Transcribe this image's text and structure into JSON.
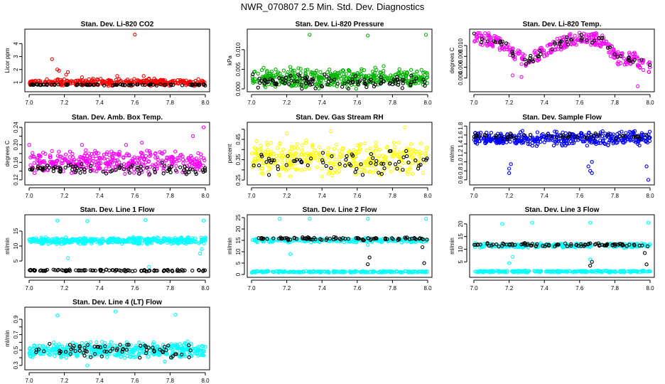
{
  "title": "NWR_070807  2.5 Min. Std. Dev. Diagnostics",
  "chart_data": [
    {
      "type": "scatter",
      "title": "Stan. Dev. Li-820 CO2",
      "ylabel": "Licor ppm",
      "xlim": [
        7.0,
        8.0
      ],
      "ylim": [
        0.5,
        4.9
      ],
      "xticks": [
        7.0,
        7.2,
        7.4,
        7.6,
        7.8,
        8.0
      ],
      "xticklabels": [
        "7.0",
        "7.2",
        "7.4",
        "7.6",
        "7.8",
        "8.0"
      ],
      "yticks": [
        1,
        2,
        3,
        4
      ],
      "yticklabels": [
        "1",
        "2",
        "3",
        "4"
      ],
      "series": [
        {
          "color": "#ff0000",
          "band": {
            "min": 0.7,
            "max": 1.3,
            "n": 320
          },
          "points": [
            [
              7.13,
              2.8
            ],
            [
              7.16,
              2.0
            ],
            [
              7.17,
              1.9
            ],
            [
              7.21,
              1.6
            ],
            [
              7.22,
              1.8
            ],
            [
              7.3,
              1.4
            ],
            [
              7.5,
              1.5
            ],
            [
              7.6,
              4.7
            ],
            [
              7.65,
              1.5
            ],
            [
              7.68,
              1.3
            ],
            [
              7.71,
              1.3
            ],
            [
              7.75,
              1.2
            ]
          ]
        },
        {
          "color": "#000000",
          "band": {
            "min": 0.75,
            "max": 0.9,
            "n": 90
          },
          "points": []
        }
      ]
    },
    {
      "type": "scatter",
      "title": "Stan. Dev. Li-820 Pressure",
      "ylabel": "kPa",
      "xlim": [
        7.0,
        8.0
      ],
      "ylim": [
        0.0,
        0.0145
      ],
      "xticks": [
        7.0,
        7.2,
        7.4,
        7.6,
        7.8,
        8.0
      ],
      "xticklabels": [
        "7.0",
        "7.2",
        "7.4",
        "7.6",
        "7.8",
        "8.0"
      ],
      "yticks": [
        0.0,
        0.005,
        0.01
      ],
      "yticklabels": [
        "0.000",
        "0.005",
        "0.010"
      ],
      "series": [
        {
          "color": "#00b400",
          "band": {
            "min": 0.0,
            "max": 0.0055,
            "n": 420
          },
          "points": [
            [
              7.33,
              0.0138
            ],
            [
              7.66,
              0.0136
            ],
            [
              7.99,
              0.0138
            ],
            [
              7.75,
              0.0058
            ],
            [
              7.22,
              0.0056
            ]
          ]
        },
        {
          "color": "#000000",
          "band": {
            "min": 0.0,
            "max": 0.004,
            "n": 110
          },
          "points": []
        }
      ]
    },
    {
      "type": "scatter",
      "title": "Stan. Dev. Li-820 Temp.",
      "ylabel": "degrees C",
      "xlim": [
        7.0,
        8.0
      ],
      "ylim": [
        0.002,
        0.0125
      ],
      "xticks": [
        7.0,
        7.2,
        7.4,
        7.6,
        7.8,
        8.0
      ],
      "xticklabels": [
        "7.0",
        "7.2",
        "7.4",
        "7.6",
        "7.8",
        "8.0"
      ],
      "yticks": [
        0.004,
        0.006,
        0.008,
        0.01
      ],
      "yticklabels": [
        "0.004",
        "0.006",
        "0.008",
        "0.010"
      ],
      "series": [
        {
          "color": "#ff00ff",
          "curve": {
            "x": [
              7.0,
              7.1,
              7.2,
              7.25,
              7.3,
              7.4,
              7.5,
              7.6,
              7.7,
              7.75,
              7.8,
              7.85,
              7.9,
              8.0
            ],
            "y": [
              0.0115,
              0.011,
              0.0095,
              0.008,
              0.007,
              0.009,
              0.0105,
              0.0115,
              0.0112,
              0.0105,
              0.008,
              0.0075,
              0.0078,
              0.006
            ]
          },
          "spread": 0.0012,
          "n": 320,
          "points": [
            [
              7.22,
              0.0045
            ],
            [
              7.27,
              0.0042
            ],
            [
              7.93,
              0.0025
            ],
            [
              7.82,
              0.0065
            ]
          ]
        },
        {
          "color": "#000000",
          "curve": {
            "x": [
              7.0,
              7.1,
              7.2,
              7.25,
              7.3,
              7.4,
              7.5,
              7.6,
              7.7,
              7.75,
              7.8,
              7.85,
              7.9,
              8.0
            ],
            "y": [
              0.0115,
              0.011,
              0.0095,
              0.008,
              0.007,
              0.009,
              0.0105,
              0.0115,
              0.0112,
              0.0105,
              0.008,
              0.0075,
              0.0078,
              0.006
            ]
          },
          "spread": 0.0008,
          "n": 60,
          "points": []
        }
      ]
    },
    {
      "type": "scatter",
      "title": "Stan. Dev. Amb. Box Temp.",
      "ylabel": "degrees C",
      "xlim": [
        7.0,
        8.0
      ],
      "ylim": [
        0.115,
        0.245
      ],
      "xticks": [
        7.0,
        7.2,
        7.4,
        7.6,
        7.8,
        8.0
      ],
      "xticklabels": [
        "7.0",
        "7.2",
        "7.4",
        "7.6",
        "7.8",
        "8.0"
      ],
      "yticks": [
        0.12,
        0.14,
        0.16,
        0.18,
        0.2,
        0.22,
        0.24
      ],
      "yticklabels": [
        "0.12",
        "",
        "0.16",
        "",
        "0.20",
        "",
        "0.24"
      ],
      "series": [
        {
          "color": "#ff00ff",
          "band": {
            "min": 0.13,
            "max": 0.19,
            "n": 380
          },
          "points": [
            [
              7.0,
              0.2
            ],
            [
              7.99,
              0.24
            ],
            [
              7.93,
              0.22
            ],
            [
              7.3,
              0.2
            ],
            [
              7.55,
              0.2
            ],
            [
              7.64,
              0.205
            ]
          ]
        },
        {
          "color": "#000000",
          "band": {
            "min": 0.13,
            "max": 0.16,
            "n": 90
          },
          "points": []
        }
      ]
    },
    {
      "type": "scatter",
      "title": "Stan. Dev. Gas Stream RH",
      "ylabel": "percent",
      "xlim": [
        7.0,
        8.0
      ],
      "ylim": [
        0.24,
        0.52
      ],
      "xticks": [
        7.0,
        7.2,
        7.4,
        7.6,
        7.8,
        8.0
      ],
      "xticklabels": [
        "7.0",
        "7.2",
        "7.4",
        "7.6",
        "7.8",
        "8.0"
      ],
      "yticks": [
        0.25,
        0.3,
        0.35,
        0.4,
        0.45,
        0.5
      ],
      "yticklabels": [
        "0.25",
        "",
        "0.35",
        "",
        "0.45",
        ""
      ],
      "series": [
        {
          "color": "#ffff00",
          "band": {
            "min": 0.26,
            "max": 0.45,
            "n": 380
          },
          "points": [
            [
              7.87,
              0.51
            ],
            [
              7.45,
              0.49
            ],
            [
              7.2,
              0.48
            ]
          ]
        },
        {
          "color": "#000000",
          "band": {
            "min": 0.27,
            "max": 0.4,
            "n": 70
          },
          "points": []
        }
      ]
    },
    {
      "type": "scatter",
      "title": "Stan. Dev. Sample Flow",
      "ylabel": "ml/min",
      "xlim": [
        7.0,
        8.0
      ],
      "ylim": [
        0.55,
        1.82
      ],
      "xticks": [
        7.0,
        7.2,
        7.4,
        7.6,
        7.8,
        8.0
      ],
      "xticklabels": [
        "7.0",
        "7.2",
        "7.4",
        "7.6",
        "7.8",
        "8.0"
      ],
      "yticks": [
        0.6,
        0.8,
        1.0,
        1.2,
        1.4,
        1.6,
        1.8
      ],
      "yticklabels": [
        "0.6",
        "0.8",
        "1.0",
        "1.2",
        "1.4",
        "1.6",
        "1.8"
      ],
      "series": [
        {
          "color": "#0000ff",
          "band": {
            "min": 1.35,
            "max": 1.7,
            "n": 400
          },
          "points": [
            [
              7.2,
              0.85
            ],
            [
              7.21,
              0.95
            ],
            [
              7.2,
              0.75
            ],
            [
              7.66,
              0.8
            ],
            [
              7.67,
              0.75
            ],
            [
              7.65,
              0.9
            ],
            [
              7.98,
              0.9
            ],
            [
              7.99,
              0.6
            ],
            [
              7.67,
              1.0
            ]
          ]
        },
        {
          "color": "#000000",
          "band": {
            "min": 1.5,
            "max": 1.65,
            "n": 50
          },
          "points": []
        }
      ]
    },
    {
      "type": "scatter",
      "title": "Stan. Dev. Line 1 Flow",
      "ylabel": "ml/min",
      "xlim": [
        7.0,
        8.0
      ],
      "ylim": [
        0.5,
        19.5
      ],
      "xticks": [
        7.0,
        7.2,
        7.4,
        7.6,
        7.8,
        8.0
      ],
      "xticklabels": [
        "7.0",
        "7.2",
        "7.4",
        "7.6",
        "7.8",
        "8.0"
      ],
      "yticks": [
        5,
        10,
        15
      ],
      "yticklabels": [
        "5",
        "10",
        "15"
      ],
      "series": [
        {
          "color": "#00ffff",
          "band": {
            "min": 10.5,
            "max": 13.0,
            "n": 420
          },
          "points": [
            [
              7.16,
              18.5
            ],
            [
              7.33,
              18.3
            ],
            [
              7.66,
              18.7
            ],
            [
              7.99,
              18.5
            ],
            [
              7.22,
              6.0
            ],
            [
              7.68,
              3.0
            ],
            [
              7.98,
              9.0
            ],
            [
              7.97,
              7.5
            ]
          ]
        },
        {
          "color": "#000000",
          "band": {
            "min": 1.5,
            "max": 2.2,
            "n": 100
          },
          "points": []
        }
      ]
    },
    {
      "type": "scatter",
      "title": "Stan. Dev. Line 2 Flow",
      "ylabel": "ml/min",
      "xlim": [
        7.0,
        8.0
      ],
      "ylim": [
        0.0,
        25.0
      ],
      "xticks": [
        7.0,
        7.2,
        7.4,
        7.6,
        7.8,
        8.0
      ],
      "xticklabels": [
        "7.0",
        "7.2",
        "7.4",
        "7.6",
        "7.8",
        "8.0"
      ],
      "yticks": [
        0,
        5,
        10,
        15,
        20,
        25
      ],
      "yticklabels": [
        "0",
        "5",
        "10",
        "15",
        "20",
        "25"
      ],
      "series": [
        {
          "color": "#00ffff",
          "band": {
            "min": 0.8,
            "max": 1.6,
            "n": 220
          },
          "points": [
            [
              7.16,
              24.5
            ],
            [
              7.33,
              24.5
            ],
            [
              7.66,
              24.5
            ],
            [
              7.99,
              24.5
            ],
            [
              7.22,
              9.0
            ],
            [
              7.66,
              13.0
            ]
          ]
        },
        {
          "color": "#00ffff",
          "band": {
            "min": 14.0,
            "max": 16.0,
            "n": 250
          },
          "points": []
        },
        {
          "color": "#000000",
          "band": {
            "min": 15.0,
            "max": 16.5,
            "n": 90
          },
          "points": [
            [
              7.66,
              4.5
            ],
            [
              7.67,
              7.5
            ],
            [
              7.98,
              5.0
            ],
            [
              7.97,
              12.0
            ]
          ]
        }
      ]
    },
    {
      "type": "scatter",
      "title": "Stan. Dev. Line 3 Flow",
      "ylabel": "ml/min",
      "xlim": [
        7.0,
        8.0
      ],
      "ylim": [
        0.0,
        22.5
      ],
      "xticks": [
        7.0,
        7.2,
        7.4,
        7.6,
        7.8,
        8.0
      ],
      "xticklabels": [
        "7.0",
        "7.2",
        "7.4",
        "7.6",
        "7.8",
        "8.0"
      ],
      "yticks": [
        5,
        10,
        15,
        20
      ],
      "yticklabels": [
        "5",
        "10",
        "15",
        "20"
      ],
      "series": [
        {
          "color": "#00ffff",
          "band": {
            "min": 0.8,
            "max": 1.6,
            "n": 220
          },
          "points": [
            [
              7.16,
              20.0
            ],
            [
              7.33,
              20.5
            ],
            [
              7.66,
              20.5
            ],
            [
              7.99,
              20.5
            ],
            [
              7.22,
              7.0
            ],
            [
              7.66,
              6.0
            ],
            [
              7.2,
              4.5
            ]
          ]
        },
        {
          "color": "#00ffff",
          "band": {
            "min": 10.5,
            "max": 12.5,
            "n": 250
          },
          "points": []
        },
        {
          "color": "#000000",
          "band": {
            "min": 11.0,
            "max": 12.5,
            "n": 90
          },
          "points": [
            [
              7.66,
              3.5
            ],
            [
              7.67,
              5.0
            ],
            [
              7.98,
              4.0
            ],
            [
              7.97,
              8.5
            ]
          ]
        }
      ]
    },
    {
      "type": "scatter",
      "title": "Stan. Dev. Line 4 (LT) Flow",
      "ylabel": "ml/min",
      "xlim": [
        7.0,
        8.0
      ],
      "ylim": [
        0.28,
        1.02
      ],
      "xticks": [
        7.0,
        7.2,
        7.4,
        7.6,
        7.8,
        8.0
      ],
      "xticklabels": [
        "7.0",
        "7.2",
        "7.4",
        "7.6",
        "7.8",
        "8.0"
      ],
      "yticks": [
        0.3,
        0.4,
        0.5,
        0.6,
        0.7,
        0.8,
        0.9
      ],
      "yticklabels": [
        "0.3",
        "",
        "0.5",
        "",
        "0.7",
        "",
        "0.9"
      ],
      "series": [
        {
          "color": "#00ffff",
          "band": {
            "min": 0.38,
            "max": 0.62,
            "n": 420
          },
          "points": [
            [
              7.49,
              1.0
            ],
            [
              7.16,
              0.95
            ],
            [
              7.83,
              0.96
            ],
            [
              7.33,
              0.3
            ],
            [
              7.77,
              0.35
            ]
          ]
        },
        {
          "color": "#000000",
          "band": {
            "min": 0.38,
            "max": 0.6,
            "n": 70
          },
          "points": []
        }
      ]
    }
  ]
}
